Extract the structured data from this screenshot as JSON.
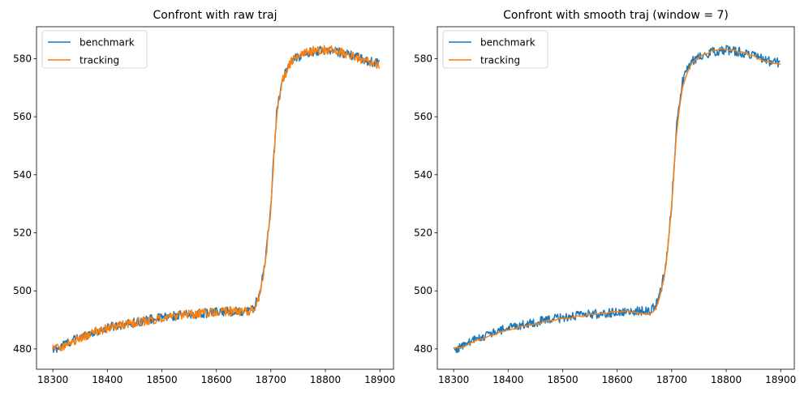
{
  "chart_data": [
    {
      "type": "line",
      "title": "Confront with raw traj",
      "xlabel": "",
      "ylabel": "",
      "xlim": [
        18270,
        18925
      ],
      "ylim": [
        473,
        591
      ],
      "xticks": [
        18300,
        18400,
        18500,
        18600,
        18700,
        18800,
        18900
      ],
      "yticks": [
        480,
        500,
        520,
        540,
        560,
        580
      ],
      "legend_position": "upper-left",
      "grid": false,
      "series": [
        {
          "name": "benchmark",
          "color": "#1f77b4",
          "points": [
            [
              18300,
              479.5
            ],
            [
              18320,
              481.5
            ],
            [
              18340,
              483.2
            ],
            [
              18360,
              484.8
            ],
            [
              18380,
              486.0
            ],
            [
              18400,
              487.2
            ],
            [
              18420,
              488.2
            ],
            [
              18440,
              488.8
            ],
            [
              18460,
              489.5
            ],
            [
              18480,
              490.2
            ],
            [
              18500,
              490.8
            ],
            [
              18520,
              491.3
            ],
            [
              18540,
              491.7
            ],
            [
              18560,
              492.0
            ],
            [
              18580,
              492.3
            ],
            [
              18600,
              492.6
            ],
            [
              18620,
              492.9
            ],
            [
              18640,
              493.0
            ],
            [
              18660,
              493.2
            ],
            [
              18670,
              494.5
            ],
            [
              18680,
              500.0
            ],
            [
              18690,
              510.0
            ],
            [
              18700,
              530.0
            ],
            [
              18710,
              560.0
            ],
            [
              18720,
              572.0
            ],
            [
              18730,
              577.0
            ],
            [
              18740,
              579.5
            ],
            [
              18760,
              581.5
            ],
            [
              18780,
              582.5
            ],
            [
              18800,
              583.0
            ],
            [
              18820,
              582.5
            ],
            [
              18840,
              581.5
            ],
            [
              18860,
              580.5
            ],
            [
              18880,
              579.0
            ],
            [
              18900,
              578.5
            ]
          ]
        },
        {
          "name": "tracking",
          "color": "#ff7f0e",
          "points": [
            [
              18300,
              480.5
            ],
            [
              18320,
              481.0
            ],
            [
              18340,
              482.8
            ],
            [
              18360,
              484.5
            ],
            [
              18380,
              485.8
            ],
            [
              18400,
              487.0
            ],
            [
              18420,
              488.0
            ],
            [
              18440,
              488.6
            ],
            [
              18460,
              489.3
            ],
            [
              18480,
              490.0
            ],
            [
              18500,
              490.6
            ],
            [
              18520,
              491.1
            ],
            [
              18540,
              491.6
            ],
            [
              18560,
              492.0
            ],
            [
              18580,
              492.3
            ],
            [
              18600,
              492.7
            ],
            [
              18620,
              493.0
            ],
            [
              18640,
              493.0
            ],
            [
              18660,
              493.0
            ],
            [
              18670,
              494.0
            ],
            [
              18680,
              499.0
            ],
            [
              18690,
              509.0
            ],
            [
              18700,
              529.0
            ],
            [
              18710,
              559.0
            ],
            [
              18720,
              571.5
            ],
            [
              18730,
              576.5
            ],
            [
              18740,
              579.5
            ],
            [
              18760,
              581.8
            ],
            [
              18780,
              582.8
            ],
            [
              18800,
              583.2
            ],
            [
              18820,
              582.6
            ],
            [
              18840,
              581.5
            ],
            [
              18860,
              580.3
            ],
            [
              18880,
              578.8
            ],
            [
              18900,
              578.0
            ]
          ]
        }
      ]
    },
    {
      "type": "line",
      "title": "Confront with smooth traj (window = 7)",
      "xlabel": "",
      "ylabel": "",
      "xlim": [
        18270,
        18925
      ],
      "ylim": [
        473,
        591
      ],
      "xticks": [
        18300,
        18400,
        18500,
        18600,
        18700,
        18800,
        18900
      ],
      "yticks": [
        480,
        500,
        520,
        540,
        560,
        580
      ],
      "legend_position": "upper-left",
      "grid": false,
      "series": [
        {
          "name": "benchmark",
          "color": "#1f77b4",
          "points": [
            [
              18300,
              479.5
            ],
            [
              18320,
              481.5
            ],
            [
              18340,
              483.2
            ],
            [
              18360,
              484.8
            ],
            [
              18380,
              486.0
            ],
            [
              18400,
              487.2
            ],
            [
              18420,
              488.2
            ],
            [
              18440,
              488.8
            ],
            [
              18460,
              489.5
            ],
            [
              18480,
              490.2
            ],
            [
              18500,
              490.8
            ],
            [
              18520,
              491.3
            ],
            [
              18540,
              491.7
            ],
            [
              18560,
              492.0
            ],
            [
              18580,
              492.3
            ],
            [
              18600,
              492.6
            ],
            [
              18620,
              492.9
            ],
            [
              18640,
              493.0
            ],
            [
              18660,
              493.2
            ],
            [
              18670,
              494.5
            ],
            [
              18680,
              500.0
            ],
            [
              18690,
              510.0
            ],
            [
              18700,
              530.0
            ],
            [
              18710,
              560.0
            ],
            [
              18720,
              572.0
            ],
            [
              18730,
              577.0
            ],
            [
              18740,
              579.5
            ],
            [
              18760,
              581.5
            ],
            [
              18780,
              582.5
            ],
            [
              18800,
              583.0
            ],
            [
              18820,
              582.5
            ],
            [
              18840,
              581.5
            ],
            [
              18860,
              580.5
            ],
            [
              18880,
              579.0
            ],
            [
              18900,
              578.5
            ]
          ]
        },
        {
          "name": "tracking",
          "color": "#ff7f0e",
          "points": [
            [
              18300,
              480.0
            ],
            [
              18320,
              481.0
            ],
            [
              18340,
              482.5
            ],
            [
              18360,
              484.0
            ],
            [
              18380,
              485.3
            ],
            [
              18400,
              486.5
            ],
            [
              18420,
              487.5
            ],
            [
              18440,
              488.2
            ],
            [
              18460,
              489.0
            ],
            [
              18480,
              490.0
            ],
            [
              18500,
              490.5
            ],
            [
              18520,
              491.0
            ],
            [
              18540,
              491.5
            ],
            [
              18560,
              492.0
            ],
            [
              18580,
              492.4
            ],
            [
              18600,
              492.8
            ],
            [
              18620,
              493.0
            ],
            [
              18640,
              492.5
            ],
            [
              18660,
              492.0
            ],
            [
              18670,
              493.5
            ],
            [
              18680,
              499.0
            ],
            [
              18690,
              509.0
            ],
            [
              18700,
              529.0
            ],
            [
              18710,
              558.0
            ],
            [
              18720,
              570.0
            ],
            [
              18730,
              576.0
            ],
            [
              18740,
              579.0
            ],
            [
              18760,
              581.5
            ],
            [
              18780,
              583.0
            ],
            [
              18800,
              583.5
            ],
            [
              18820,
              582.5
            ],
            [
              18840,
              581.5
            ],
            [
              18860,
              580.0
            ],
            [
              18880,
              578.5
            ],
            [
              18900,
              578.0
            ]
          ]
        }
      ]
    }
  ]
}
